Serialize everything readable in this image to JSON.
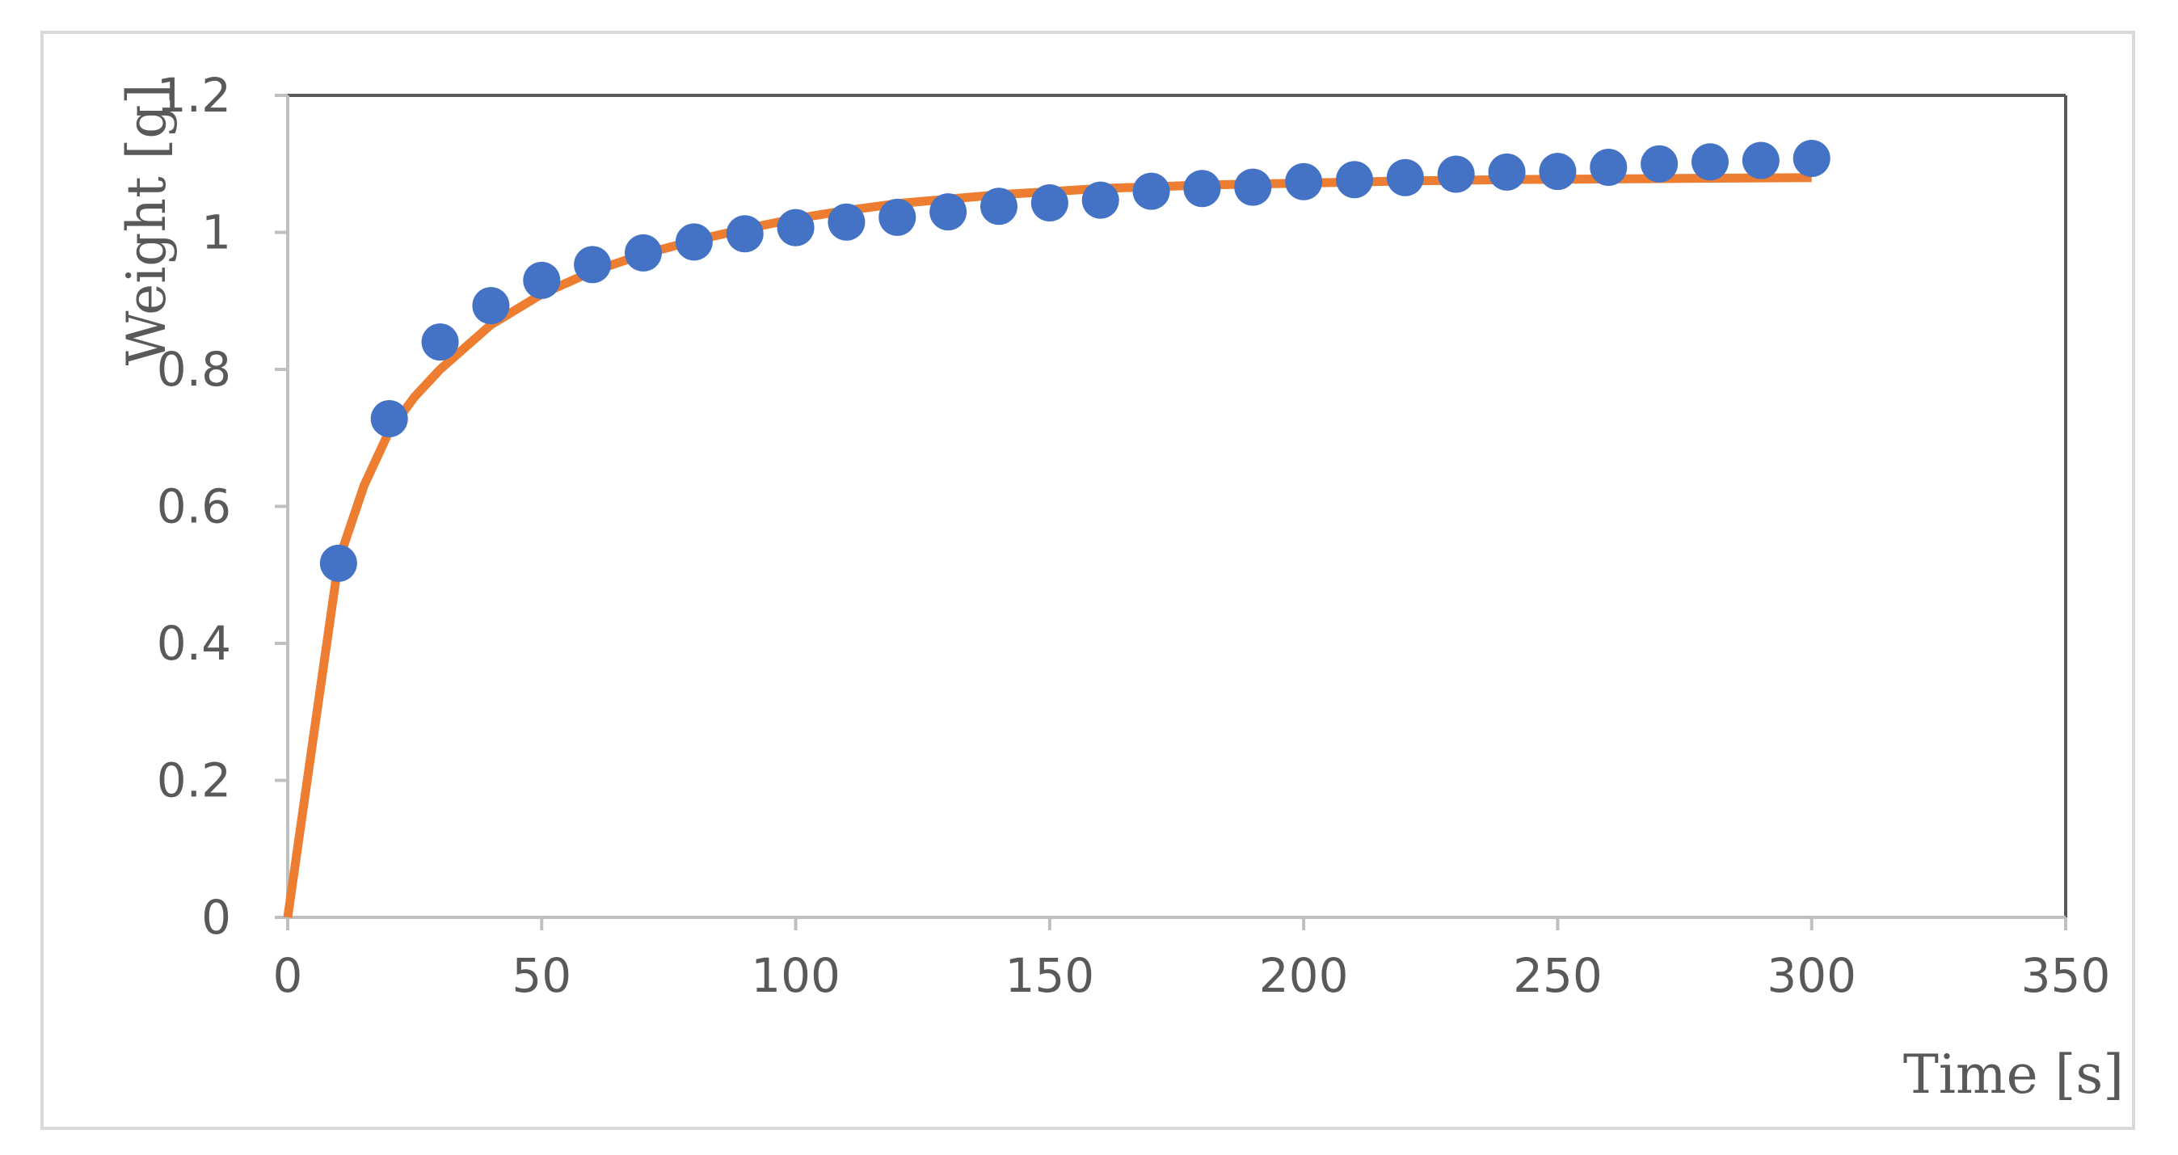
{
  "chart_data": {
    "type": "scatter",
    "title": "",
    "xlabel": "Time [s]",
    "ylabel": "Weight [g]",
    "xlim": [
      0,
      350
    ],
    "ylim": [
      0,
      1.2
    ],
    "x_ticks": [
      0,
      50,
      100,
      150,
      200,
      250,
      300,
      350
    ],
    "y_ticks": [
      0,
      0.2,
      0.4,
      0.6,
      0.8,
      1,
      1.2
    ],
    "x_tick_labels": [
      "0",
      "50",
      "100",
      "150",
      "200",
      "250",
      "300",
      "350"
    ],
    "y_tick_labels": [
      "0",
      "0.2",
      "0.4",
      "0.6",
      "0.8",
      "1",
      "1.2"
    ],
    "grid": false,
    "legend": "none",
    "series": [
      {
        "kind": "scatter",
        "color": "#4472C4",
        "x": [
          10,
          20,
          30,
          40,
          50,
          60,
          70,
          80,
          90,
          100,
          110,
          120,
          130,
          140,
          150,
          160,
          170,
          180,
          190,
          200,
          210,
          220,
          230,
          240,
          250,
          260,
          270,
          280,
          290,
          300
        ],
        "y": [
          0.517,
          0.728,
          0.84,
          0.893,
          0.93,
          0.953,
          0.97,
          0.986,
          0.998,
          1.007,
          1.015,
          1.022,
          1.03,
          1.038,
          1.043,
          1.047,
          1.06,
          1.064,
          1.066,
          1.074,
          1.077,
          1.08,
          1.085,
          1.088,
          1.089,
          1.095,
          1.1,
          1.103,
          1.105,
          1.108
        ]
      },
      {
        "kind": "line",
        "color": "#ED7D31",
        "x": [
          0,
          5,
          10,
          15,
          20,
          25,
          30,
          40,
          50,
          60,
          70,
          80,
          90,
          100,
          110,
          120,
          140,
          160,
          180,
          200,
          220,
          240,
          260,
          280,
          300
        ],
        "y": [
          0,
          0.26,
          0.52,
          0.63,
          0.71,
          0.76,
          0.8,
          0.865,
          0.91,
          0.943,
          0.968,
          0.988,
          1.005,
          1.02,
          1.032,
          1.042,
          1.055,
          1.064,
          1.069,
          1.072,
          1.075,
          1.077,
          1.078,
          1.079,
          1.08
        ]
      }
    ]
  }
}
